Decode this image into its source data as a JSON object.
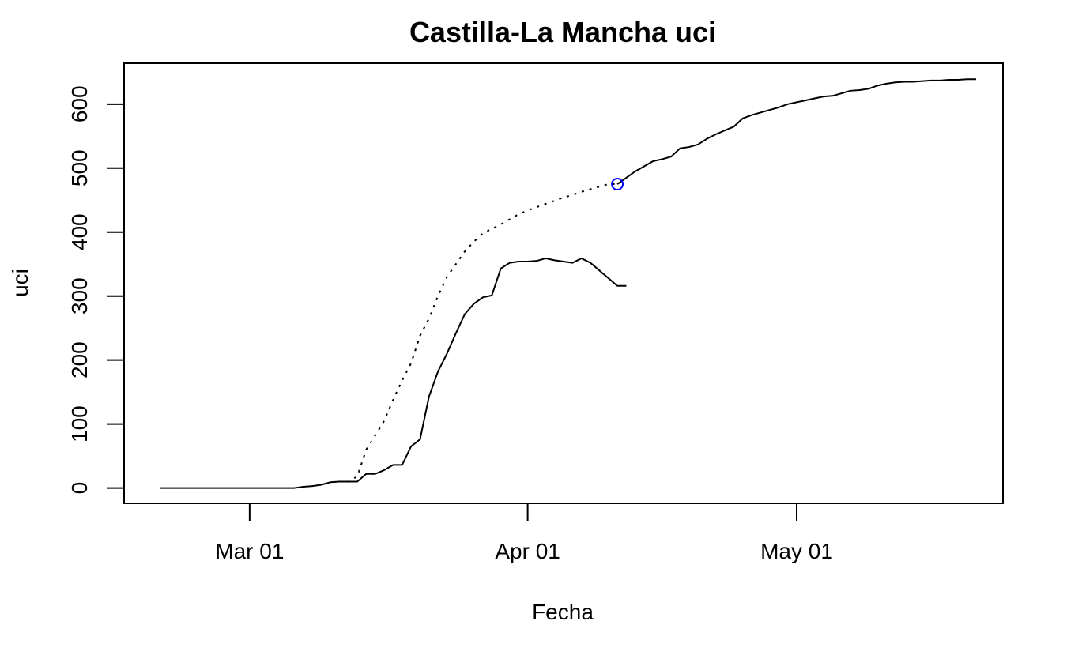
{
  "chart_data": {
    "type": "line",
    "title": "Castilla-La Mancha uci",
    "xlabel": "Fecha",
    "ylabel": "uci",
    "x_ticks": [
      {
        "date": "2020-03-01",
        "label": "Mar 01"
      },
      {
        "date": "2020-04-01",
        "label": "Apr 01"
      },
      {
        "date": "2020-05-01",
        "label": "May 01"
      }
    ],
    "y_ticks": [
      0,
      100,
      200,
      300,
      400,
      500,
      600
    ],
    "xlim": [
      "2020-02-16",
      "2020-05-24"
    ],
    "ylim": [
      -24,
      664
    ],
    "grid": false,
    "series": [
      {
        "style": "solid",
        "color": "#000000",
        "points": [
          [
            "2020-02-20",
            0
          ],
          [
            "2020-02-26",
            0
          ],
          [
            "2020-03-01",
            0
          ],
          [
            "2020-03-06",
            0
          ],
          [
            "2020-03-07",
            2
          ],
          [
            "2020-03-08",
            3
          ],
          [
            "2020-03-09",
            5
          ],
          [
            "2020-03-10",
            9
          ],
          [
            "2020-03-11",
            10
          ],
          [
            "2020-03-12",
            10
          ],
          [
            "2020-03-13",
            10
          ],
          [
            "2020-03-14",
            22
          ],
          [
            "2020-03-15",
            22
          ],
          [
            "2020-03-16",
            28
          ],
          [
            "2020-03-17",
            36
          ],
          [
            "2020-03-18",
            36
          ],
          [
            "2020-03-19",
            65
          ],
          [
            "2020-03-20",
            76
          ],
          [
            "2020-03-21",
            143
          ],
          [
            "2020-03-22",
            182
          ],
          [
            "2020-03-23",
            210
          ],
          [
            "2020-03-24",
            242
          ],
          [
            "2020-03-25",
            272
          ],
          [
            "2020-03-26",
            288
          ],
          [
            "2020-03-27",
            298
          ],
          [
            "2020-03-28",
            301
          ],
          [
            "2020-03-29",
            343
          ],
          [
            "2020-03-30",
            352
          ],
          [
            "2020-03-31",
            354
          ],
          [
            "2020-04-01",
            354
          ],
          [
            "2020-04-02",
            355
          ],
          [
            "2020-04-03",
            359
          ],
          [
            "2020-04-04",
            356
          ],
          [
            "2020-04-05",
            354
          ],
          [
            "2020-04-06",
            352
          ],
          [
            "2020-04-07",
            359
          ],
          [
            "2020-04-08",
            352
          ],
          [
            "2020-04-09",
            340
          ],
          [
            "2020-04-10",
            328
          ],
          [
            "2020-04-11",
            316
          ],
          [
            "2020-04-12",
            316
          ]
        ]
      },
      {
        "style": "dotted",
        "color": "#000000",
        "points": [
          [
            "2020-03-11",
            10
          ],
          [
            "2020-03-12",
            10
          ],
          [
            "2020-03-13",
            18
          ],
          [
            "2020-03-14",
            60
          ],
          [
            "2020-03-15",
            82
          ],
          [
            "2020-03-16",
            105
          ],
          [
            "2020-03-17",
            138
          ],
          [
            "2020-03-18",
            168
          ],
          [
            "2020-03-19",
            195
          ],
          [
            "2020-03-20",
            238
          ],
          [
            "2020-03-21",
            265
          ],
          [
            "2020-03-22",
            300
          ],
          [
            "2020-03-23",
            330
          ],
          [
            "2020-03-24",
            350
          ],
          [
            "2020-03-25",
            370
          ],
          [
            "2020-03-26",
            385
          ],
          [
            "2020-03-27",
            398
          ],
          [
            "2020-03-28",
            405
          ],
          [
            "2020-03-29",
            412
          ],
          [
            "2020-03-30",
            420
          ],
          [
            "2020-03-31",
            428
          ],
          [
            "2020-04-01",
            434
          ],
          [
            "2020-04-02",
            439
          ],
          [
            "2020-04-03",
            444
          ],
          [
            "2020-04-04",
            449
          ],
          [
            "2020-04-05",
            454
          ],
          [
            "2020-04-06",
            458
          ],
          [
            "2020-04-07",
            463
          ],
          [
            "2020-04-08",
            467
          ],
          [
            "2020-04-09",
            471
          ],
          [
            "2020-04-10",
            475
          ],
          [
            "2020-04-11",
            475
          ]
        ]
      },
      {
        "style": "solid",
        "color": "#000000",
        "points": [
          [
            "2020-04-11",
            475
          ],
          [
            "2020-04-12",
            485
          ],
          [
            "2020-04-13",
            495
          ],
          [
            "2020-04-14",
            503
          ],
          [
            "2020-04-15",
            511
          ],
          [
            "2020-04-16",
            514
          ],
          [
            "2020-04-17",
            518
          ],
          [
            "2020-04-18",
            531
          ],
          [
            "2020-04-19",
            533
          ],
          [
            "2020-04-20",
            537
          ],
          [
            "2020-04-21",
            546
          ],
          [
            "2020-04-22",
            553
          ],
          [
            "2020-04-23",
            559
          ],
          [
            "2020-04-24",
            565
          ],
          [
            "2020-04-25",
            578
          ],
          [
            "2020-04-26",
            583
          ],
          [
            "2020-04-27",
            587
          ],
          [
            "2020-04-28",
            591
          ],
          [
            "2020-04-29",
            595
          ],
          [
            "2020-04-30",
            600
          ],
          [
            "2020-05-01",
            603
          ],
          [
            "2020-05-02",
            606
          ],
          [
            "2020-05-03",
            609
          ],
          [
            "2020-05-04",
            612
          ],
          [
            "2020-05-05",
            613
          ],
          [
            "2020-05-06",
            617
          ],
          [
            "2020-05-07",
            621
          ],
          [
            "2020-05-08",
            622
          ],
          [
            "2020-05-09",
            624
          ],
          [
            "2020-05-10",
            629
          ],
          [
            "2020-05-11",
            632
          ],
          [
            "2020-05-12",
            634
          ],
          [
            "2020-05-13",
            635
          ],
          [
            "2020-05-14",
            635
          ]
        ]
      },
      {
        "style": "dashdot",
        "color": "#000000",
        "points": [
          [
            "2020-05-14",
            635
          ],
          [
            "2020-05-15",
            636
          ]
        ]
      },
      {
        "style": "solid",
        "color": "#000000",
        "points": [
          [
            "2020-05-15",
            636
          ],
          [
            "2020-05-16",
            637
          ],
          [
            "2020-05-17",
            637
          ],
          [
            "2020-05-18",
            638
          ],
          [
            "2020-05-19",
            638
          ],
          [
            "2020-05-20",
            639
          ],
          [
            "2020-05-21",
            639
          ]
        ]
      }
    ],
    "highlight_point": {
      "date": "2020-04-11",
      "value": 475,
      "color": "#0000ff",
      "marker": "open-circle"
    }
  }
}
